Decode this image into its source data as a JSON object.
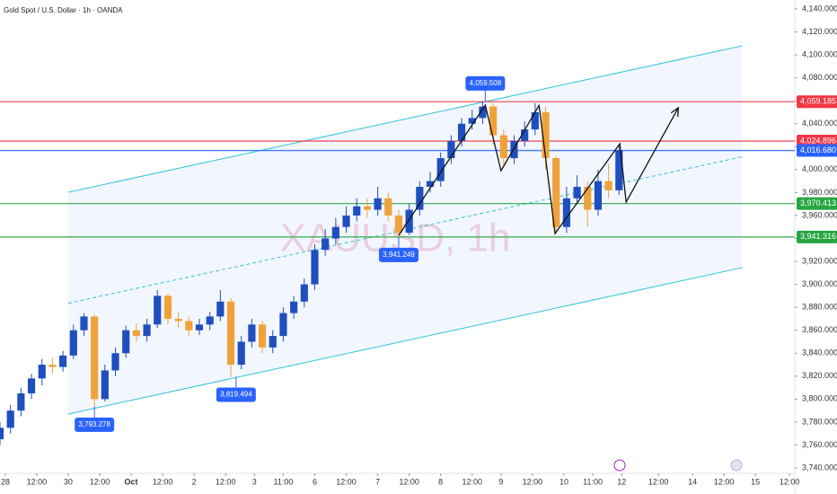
{
  "chart_data": {
    "type": "candlestick",
    "title": "Gold Spot / U.S. Dollar · 1h · OANDA",
    "watermark": "XAUUSD, 1h",
    "up_color": "#1f4fbf",
    "down_color": "#f0a23a",
    "xlim": [
      0,
      303
    ],
    "ylim": [
      3740,
      4140
    ],
    "grid": false,
    "xticks": [
      {
        "value": 2,
        "label": "28"
      },
      {
        "value": 14,
        "label": "12:00"
      },
      {
        "value": 26,
        "label": "30"
      },
      {
        "value": 38,
        "label": "12:00"
      },
      {
        "value": 50,
        "label": "Oct"
      },
      {
        "value": 62,
        "label": "12:00"
      },
      {
        "value": 74,
        "label": "2"
      },
      {
        "value": 86,
        "label": "12:00"
      },
      {
        "value": 97,
        "label": "3"
      },
      {
        "value": 108,
        "label": "11:00"
      },
      {
        "value": 120,
        "label": "6"
      },
      {
        "value": 132,
        "label": "12:00"
      },
      {
        "value": 144,
        "label": "7"
      },
      {
        "value": 156,
        "label": "12:00"
      },
      {
        "value": 168,
        "label": "8"
      },
      {
        "value": 180,
        "label": "12:00"
      },
      {
        "value": 191,
        "label": "9"
      },
      {
        "value": 203,
        "label": "12:00"
      },
      {
        "value": 215,
        "label": "10"
      },
      {
        "value": 226,
        "label": "11:00"
      },
      {
        "value": 237,
        "label": "12"
      },
      {
        "value": 251,
        "label": "12:00"
      },
      {
        "value": 264,
        "label": "14"
      },
      {
        "value": 276,
        "label": "12:00"
      },
      {
        "value": 288,
        "label": "15"
      },
      {
        "value": 301,
        "label": "12:00"
      }
    ],
    "yticks": [
      {
        "value": 3740,
        "label": "3,740.000"
      },
      {
        "value": 3760,
        "label": "3,760.000"
      },
      {
        "value": 3780,
        "label": "3,780.000"
      },
      {
        "value": 3800,
        "label": "3,800.000"
      },
      {
        "value": 3820,
        "label": "3,820.000"
      },
      {
        "value": 3840,
        "label": "3,840.000"
      },
      {
        "value": 3860,
        "label": "3,860.000"
      },
      {
        "value": 3880,
        "label": "3,880.000"
      },
      {
        "value": 3900,
        "label": "3,900.000"
      },
      {
        "value": 3920,
        "label": "3,920.000"
      },
      {
        "value": 3940,
        "label": "3,940.000"
      },
      {
        "value": 3960,
        "label": "3,960.000"
      },
      {
        "value": 3980,
        "label": "3,980.000"
      },
      {
        "value": 4000,
        "label": "4,000.000"
      },
      {
        "value": 4020,
        "label": "4,020.000"
      },
      {
        "value": 4040,
        "label": "4,040.000"
      },
      {
        "value": 4060,
        "label": "4,060.000"
      },
      {
        "value": 4080,
        "label": "4,080.000"
      },
      {
        "value": 4100,
        "label": "4,100.000"
      },
      {
        "value": 4120,
        "label": "4,120.000"
      },
      {
        "value": 4140,
        "label": "4,140.000"
      }
    ],
    "candles": {
      "x": [
        0,
        4,
        8,
        12,
        16,
        20,
        24,
        28,
        32,
        36,
        40,
        44,
        48,
        52,
        56,
        60,
        64,
        68,
        72,
        76,
        80,
        84,
        88,
        92,
        96,
        100,
        104,
        108,
        112,
        116,
        120,
        124,
        128,
        132,
        136,
        140,
        144,
        148,
        152,
        156,
        160,
        164,
        168,
        172,
        176,
        180,
        184,
        188,
        192,
        196,
        200,
        204,
        208,
        212,
        216,
        220,
        224,
        228,
        232,
        236
      ],
      "open": [
        3765,
        3775,
        3790,
        3805,
        3818,
        3830,
        3828,
        3838,
        3860,
        3872,
        3800,
        3825,
        3840,
        3860,
        3855,
        3865,
        3890,
        3870,
        3868,
        3860,
        3865,
        3872,
        3885,
        3830,
        3850,
        3865,
        3845,
        3855,
        3875,
        3885,
        3900,
        3930,
        3940,
        3950,
        3960,
        3968,
        3965,
        3975,
        3960,
        3945,
        3965,
        3985,
        3990,
        4010,
        4025,
        4040,
        4045,
        4055,
        4030,
        4010,
        4025,
        4035,
        4050,
        4010,
        3950,
        3975,
        3985,
        3965,
        3990,
        3982
      ],
      "high": [
        3780,
        3795,
        3810,
        3822,
        3835,
        3836,
        3842,
        3865,
        3875,
        3874,
        3830,
        3845,
        3864,
        3866,
        3870,
        3895,
        3892,
        3876,
        3872,
        3870,
        3876,
        3895,
        3888,
        3855,
        3870,
        3868,
        3860,
        3880,
        3890,
        3905,
        3935,
        3948,
        3958,
        3968,
        3975,
        3975,
        3985,
        3980,
        3965,
        3970,
        3990,
        3998,
        4015,
        4030,
        4045,
        4052,
        4059.508,
        4058,
        4035,
        4030,
        4042,
        4058,
        4055,
        4012,
        3985,
        3995,
        3990,
        4000,
        4005,
        4022
      ],
      "low": [
        3760,
        3770,
        3785,
        3800,
        3812,
        3822,
        3824,
        3835,
        3855,
        3793.278,
        3798,
        3820,
        3836,
        3850,
        3850,
        3862,
        3865,
        3862,
        3855,
        3856,
        3860,
        3868,
        3819.494,
        3826,
        3845,
        3840,
        3840,
        3850,
        3870,
        3880,
        3895,
        3925,
        3935,
        3945,
        3955,
        3958,
        3960,
        3955,
        3941.249,
        3943,
        3960,
        3980,
        3985,
        4005,
        4020,
        4035,
        4040,
        4022,
        4002,
        4005,
        4020,
        4030,
        4000,
        3944,
        3945,
        3970,
        3950,
        3960,
        3975,
        3978
      ],
      "close": [
        3775,
        3790,
        3805,
        3818,
        3830,
        3828,
        3838,
        3860,
        3872,
        3800,
        3825,
        3840,
        3860,
        3855,
        3865,
        3890,
        3870,
        3868,
        3860,
        3865,
        3872,
        3885,
        3830,
        3850,
        3865,
        3845,
        3855,
        3875,
        3885,
        3900,
        3930,
        3940,
        3950,
        3960,
        3968,
        3965,
        3975,
        3960,
        3945,
        3965,
        3985,
        3990,
        4010,
        4025,
        4040,
        4045,
        4055,
        4030,
        4010,
        4025,
        4035,
        4050,
        4010,
        3950,
        3975,
        3985,
        3965,
        3990,
        3982,
        4016.68
      ]
    },
    "channel": {
      "x": [
        26,
        283
      ],
      "upper": [
        3980.3,
        4107.9
      ],
      "middle": [
        3883.6,
        4011.2
      ],
      "lower": [
        3787,
        3914.6
      ],
      "color": "#2ec4d6"
    },
    "zigzag": {
      "x": [
        152,
        185,
        191,
        205.5,
        211.6,
        236.3,
        238.7,
        258.6
      ],
      "y": [
        3942.7,
        4056.2,
        3999,
        4056,
        3944.3,
        4022.6,
        3971.7,
        4053.9
      ]
    },
    "levels": [
      {
        "value": 4059.185,
        "label": "4,059.185",
        "color": "#f23645"
      },
      {
        "value": 4024.896,
        "label": "4,024.896",
        "color": "#f23645"
      },
      {
        "value": 4016.68,
        "label": "4,016.680",
        "color": "#2962ff"
      },
      {
        "value": 3970.413,
        "label": "3,970.413",
        "color": "#26a641"
      },
      {
        "value": 3941.316,
        "label": "3,941.316",
        "color": "#26a641"
      }
    ],
    "callouts": [
      {
        "x": 185,
        "value": 4059.508,
        "label": "4,059.508",
        "position": "above"
      },
      {
        "x": 152,
        "value": 3941.249,
        "label": "3,941.249",
        "position": "below"
      },
      {
        "x": 90,
        "value": 3819.494,
        "label": "3,819.494",
        "position": "below"
      },
      {
        "x": 36,
        "value": 3793.278,
        "label": "3,793.278",
        "position": "below"
      }
    ]
  }
}
